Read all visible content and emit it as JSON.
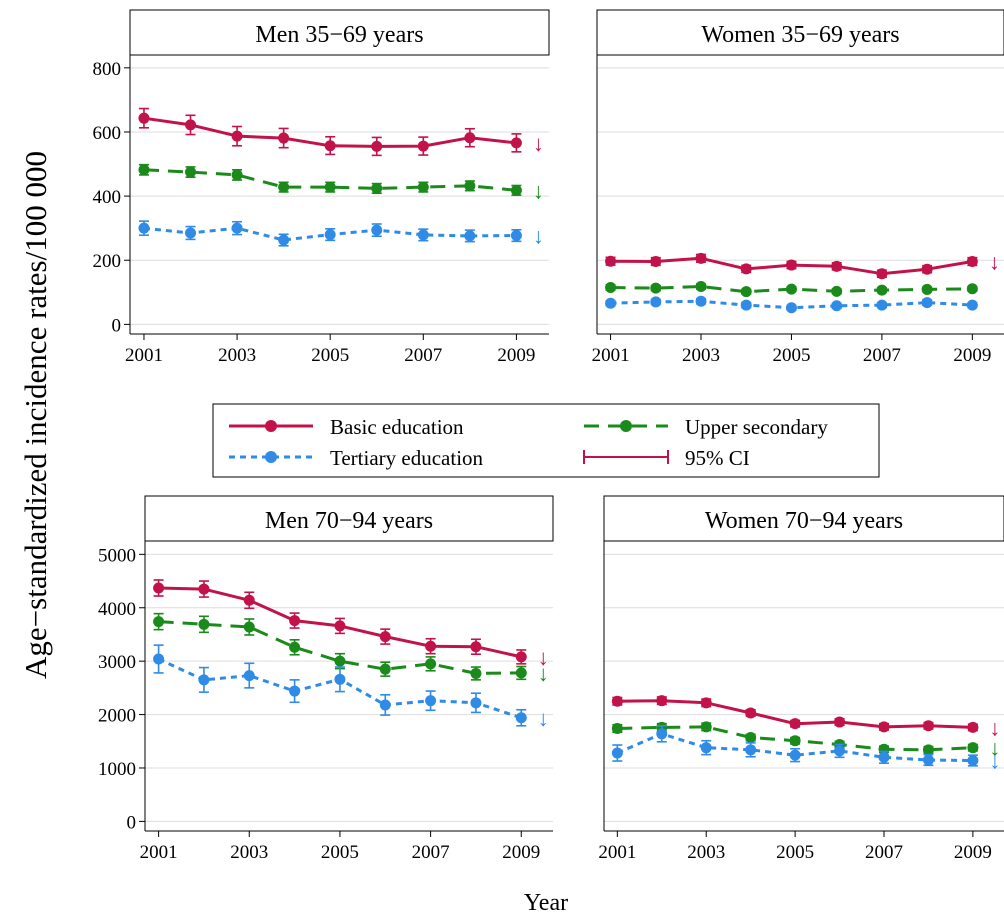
{
  "figure": {
    "ylabel": "Age−standardized incidence rates/100 000",
    "xlabel": "Year"
  },
  "legend": {
    "entries": [
      {
        "label": "Basic education",
        "style": "basic"
      },
      {
        "label": "Upper secondary",
        "style": "upper"
      },
      {
        "label": "Tertiary education",
        "style": "tertiary"
      },
      {
        "label": "95% CI",
        "style": "ci"
      }
    ]
  },
  "colors": {
    "basic": "#c2124a",
    "upper": "#1a8a1a",
    "tertiary": "#2f8be6",
    "grid": "#dddddd"
  },
  "trend_symbol": "↓",
  "chart_data": [
    {
      "type": "line",
      "title": "Men 35−69 years",
      "x": [
        2001,
        2002,
        2003,
        2004,
        2005,
        2006,
        2007,
        2008,
        2009
      ],
      "xticks": [
        2001,
        2003,
        2005,
        2007,
        2009
      ],
      "xlim": [
        2000.7,
        2009.7
      ],
      "ylim": [
        -30,
        840
      ],
      "yticks": [
        0,
        200,
        400,
        600,
        800
      ],
      "series": [
        {
          "name": "Basic education",
          "key": "basic",
          "values": [
            643,
            622,
            587,
            581,
            557,
            555,
            556,
            582,
            566
          ],
          "lower": [
            613,
            592,
            557,
            551,
            530,
            527,
            528,
            554,
            538
          ],
          "upper": [
            673,
            652,
            617,
            611,
            585,
            583,
            584,
            610,
            594
          ],
          "trend": "↓"
        },
        {
          "name": "Upper secondary",
          "key": "upper",
          "values": [
            482,
            475,
            466,
            428,
            428,
            424,
            428,
            432,
            418
          ],
          "lower": [
            466,
            459,
            450,
            413,
            413,
            409,
            413,
            417,
            403
          ],
          "upper": [
            498,
            491,
            482,
            443,
            443,
            439,
            443,
            447,
            433
          ],
          "trend": "↓"
        },
        {
          "name": "Tertiary education",
          "key": "tertiary",
          "values": [
            300,
            285,
            300,
            263,
            280,
            294,
            279,
            276,
            277
          ],
          "lower": [
            278,
            265,
            280,
            245,
            262,
            275,
            261,
            258,
            259
          ],
          "upper": [
            322,
            305,
            320,
            281,
            298,
            313,
            297,
            294,
            295
          ],
          "trend": "↓"
        }
      ]
    },
    {
      "type": "line",
      "title": "Women 35−69 years",
      "x": [
        2001,
        2002,
        2003,
        2004,
        2005,
        2006,
        2007,
        2008,
        2009
      ],
      "xticks": [
        2001,
        2003,
        2005,
        2007,
        2009
      ],
      "xlim": [
        2000.7,
        2009.7
      ],
      "ylim": [
        -30,
        840
      ],
      "yticks": [
        0,
        200,
        400,
        600,
        800
      ],
      "series": [
        {
          "name": "Basic education",
          "key": "basic",
          "values": [
            197,
            196,
            206,
            173,
            185,
            181,
            158,
            172,
            196
          ],
          "lower": [
            185,
            184,
            194,
            162,
            174,
            170,
            147,
            161,
            184
          ],
          "upper": [
            209,
            208,
            218,
            184,
            196,
            192,
            169,
            183,
            208
          ],
          "trend": "↓"
        },
        {
          "name": "Upper secondary",
          "key": "upper",
          "values": [
            115,
            113,
            118,
            102,
            110,
            103,
            107,
            109,
            111
          ],
          "lower": [
            107,
            105,
            110,
            95,
            103,
            96,
            100,
            102,
            104
          ],
          "upper": [
            123,
            121,
            126,
            109,
            117,
            110,
            114,
            116,
            118
          ],
          "trend": ""
        },
        {
          "name": "Tertiary education",
          "key": "tertiary",
          "values": [
            66,
            70,
            72,
            60,
            52,
            58,
            60,
            68,
            60
          ],
          "lower": [
            58,
            62,
            64,
            52,
            45,
            51,
            53,
            60,
            53
          ],
          "upper": [
            74,
            78,
            80,
            68,
            59,
            65,
            67,
            76,
            67
          ],
          "trend": ""
        }
      ]
    },
    {
      "type": "line",
      "title": "Men 70−94 years",
      "x": [
        2001,
        2002,
        2003,
        2004,
        2005,
        2006,
        2007,
        2008,
        2009
      ],
      "xticks": [
        2001,
        2003,
        2005,
        2007,
        2009
      ],
      "xlim": [
        2000.7,
        2009.7
      ],
      "ylim": [
        -180,
        5250
      ],
      "yticks": [
        0,
        1000,
        2000,
        3000,
        4000,
        5000
      ],
      "series": [
        {
          "name": "Basic education",
          "key": "basic",
          "values": [
            4370,
            4350,
            4140,
            3760,
            3660,
            3460,
            3280,
            3270,
            3080
          ],
          "lower": [
            4220,
            4200,
            3990,
            3620,
            3520,
            3320,
            3140,
            3130,
            2950
          ],
          "upper": [
            4520,
            4500,
            4290,
            3900,
            3800,
            3600,
            3420,
            3410,
            3210
          ],
          "trend": "↓"
        },
        {
          "name": "Upper secondary",
          "key": "upper",
          "values": [
            3740,
            3690,
            3640,
            3260,
            3000,
            2850,
            2950,
            2770,
            2780
          ],
          "lower": [
            3590,
            3540,
            3490,
            3120,
            2860,
            2720,
            2820,
            2650,
            2660
          ],
          "upper": [
            3890,
            3840,
            3790,
            3400,
            3140,
            2980,
            3080,
            2890,
            2900
          ],
          "trend": "↓"
        },
        {
          "name": "Tertiary education",
          "key": "tertiary",
          "values": [
            3040,
            2650,
            2730,
            2440,
            2660,
            2180,
            2260,
            2220,
            1940
          ],
          "lower": [
            2780,
            2420,
            2500,
            2230,
            2430,
            1990,
            2080,
            2040,
            1790
          ],
          "upper": [
            3300,
            2880,
            2960,
            2650,
            2890,
            2370,
            2440,
            2400,
            2090
          ],
          "trend": "↓"
        }
      ]
    },
    {
      "type": "line",
      "title": "Women 70−94 years",
      "x": [
        2001,
        2002,
        2003,
        2004,
        2005,
        2006,
        2007,
        2008,
        2009
      ],
      "xticks": [
        2001,
        2003,
        2005,
        2007,
        2009
      ],
      "xlim": [
        2000.7,
        2009.7
      ],
      "ylim": [
        -180,
        5250
      ],
      "yticks": [
        0,
        1000,
        2000,
        3000,
        4000,
        5000
      ],
      "series": [
        {
          "name": "Basic education",
          "key": "basic",
          "values": [
            2250,
            2260,
            2220,
            2030,
            1830,
            1860,
            1770,
            1790,
            1760
          ],
          "lower": [
            2180,
            2190,
            2150,
            1970,
            1770,
            1800,
            1710,
            1730,
            1700
          ],
          "upper": [
            2320,
            2330,
            2290,
            2090,
            1890,
            1920,
            1830,
            1850,
            1820
          ],
          "trend": "↓"
        },
        {
          "name": "Upper secondary",
          "key": "upper",
          "values": [
            1740,
            1760,
            1770,
            1570,
            1510,
            1440,
            1350,
            1340,
            1380
          ],
          "lower": [
            1670,
            1690,
            1700,
            1510,
            1450,
            1380,
            1290,
            1280,
            1320
          ],
          "upper": [
            1810,
            1830,
            1840,
            1630,
            1570,
            1500,
            1410,
            1400,
            1440
          ],
          "trend": "↓"
        },
        {
          "name": "Tertiary education",
          "key": "tertiary",
          "values": [
            1280,
            1640,
            1380,
            1340,
            1240,
            1320,
            1200,
            1150,
            1140
          ],
          "lower": [
            1130,
            1490,
            1250,
            1210,
            1120,
            1200,
            1090,
            1050,
            1040
          ],
          "upper": [
            1430,
            1790,
            1510,
            1470,
            1360,
            1440,
            1310,
            1250,
            1240
          ],
          "trend": "↓"
        }
      ]
    }
  ]
}
